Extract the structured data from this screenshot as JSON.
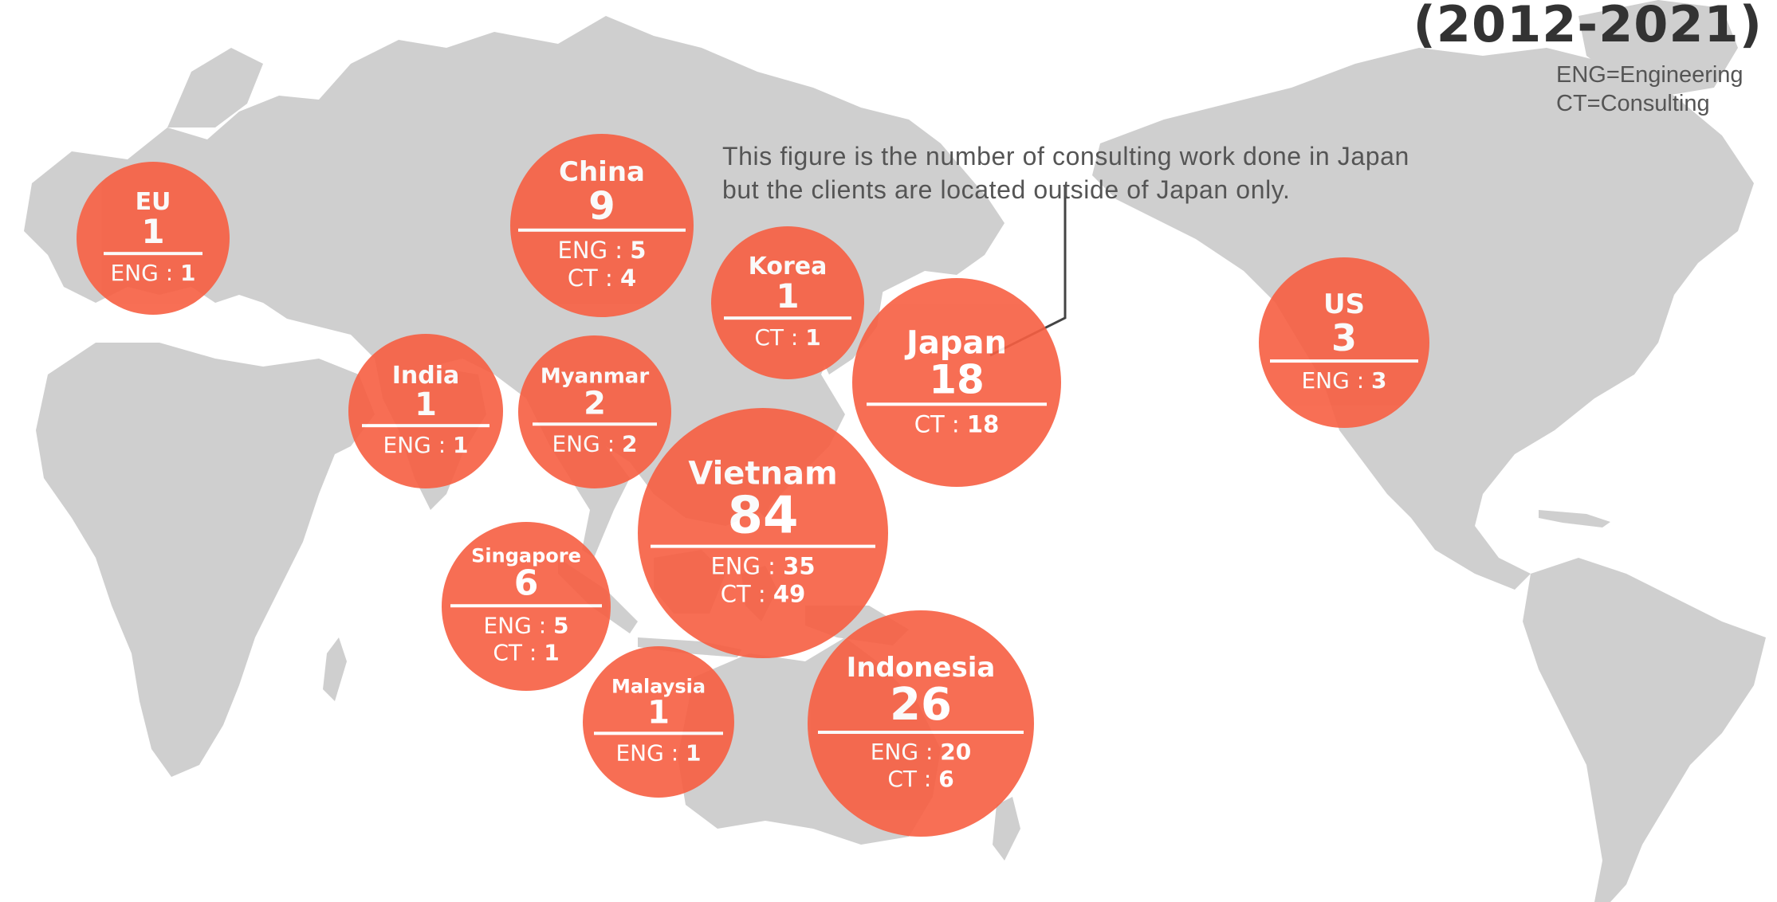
{
  "header": {
    "period": "(2012-2021)"
  },
  "legend": {
    "eng": "ENG=Engineering",
    "ct": "CT=Consulting"
  },
  "note": {
    "line1": "This figure is the number of consulting work done in Japan",
    "line2": "but the clients are located outside of Japan only."
  },
  "colors": {
    "bubble": "#f75f42",
    "land": "#cfcfcf",
    "text_dark": "#333333"
  },
  "regions": [
    {
      "key": "eu",
      "name": "EU",
      "total": "1",
      "lines": [
        {
          "label": "ENG : ",
          "value": "1"
        }
      ]
    },
    {
      "key": "china",
      "name": "China",
      "total": "9",
      "lines": [
        {
          "label": "ENG : ",
          "value": "5"
        },
        {
          "label": "CT : ",
          "value": "4"
        }
      ]
    },
    {
      "key": "korea",
      "name": "Korea",
      "total": "1",
      "lines": [
        {
          "label": "CT : ",
          "value": "1"
        }
      ]
    },
    {
      "key": "japan",
      "name": "Japan",
      "total": "18",
      "lines": [
        {
          "label": "CT : ",
          "value": "18"
        }
      ]
    },
    {
      "key": "us",
      "name": "US",
      "total": "3",
      "lines": [
        {
          "label": "ENG : ",
          "value": "3"
        }
      ]
    },
    {
      "key": "india",
      "name": "India",
      "total": "1",
      "lines": [
        {
          "label": "ENG : ",
          "value": "1"
        }
      ]
    },
    {
      "key": "myanmar",
      "name": "Myanmar",
      "total": "2",
      "lines": [
        {
          "label": "ENG : ",
          "value": "2"
        }
      ]
    },
    {
      "key": "vietnam",
      "name": "Vietnam",
      "total": "84",
      "lines": [
        {
          "label": "ENG : ",
          "value": "35"
        },
        {
          "label": "CT : ",
          "value": "49"
        }
      ]
    },
    {
      "key": "singapore",
      "name": "Singapore",
      "total": "6",
      "lines": [
        {
          "label": "ENG : ",
          "value": "5"
        },
        {
          "label": "CT : ",
          "value": "1"
        }
      ]
    },
    {
      "key": "malaysia",
      "name": "Malaysia",
      "total": "1",
      "lines": [
        {
          "label": "ENG : ",
          "value": "1"
        }
      ]
    },
    {
      "key": "indonesia",
      "name": "Indonesia",
      "total": "26",
      "lines": [
        {
          "label": "ENG : ",
          "value": "20"
        },
        {
          "label": "CT : ",
          "value": "6"
        }
      ]
    }
  ]
}
